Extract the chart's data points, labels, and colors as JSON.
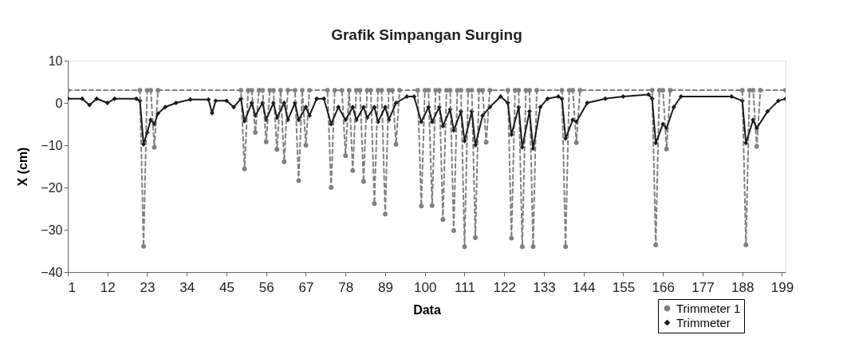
{
  "chart_data": {
    "type": "line",
    "title": "Grafik Simpangan Surging",
    "xlabel": "Data",
    "ylabel": "X (cm)",
    "xlim": [
      1,
      200
    ],
    "xticks": [
      1,
      12,
      23,
      34,
      45,
      56,
      67,
      78,
      89,
      100,
      111,
      122,
      133,
      144,
      155,
      166,
      177,
      188,
      199
    ],
    "ylim": [
      -40,
      10
    ],
    "yticks": [
      -40,
      -30,
      -20,
      -10,
      0,
      10
    ],
    "grid": false,
    "legend": "bottom right",
    "series": [
      {
        "name": "Trimmeter 1",
        "color": "#808080",
        "marker": "circle",
        "line_style": "dashed",
        "x": [
          1,
          21,
          22,
          23,
          24,
          25,
          26,
          49,
          50,
          51,
          52,
          53,
          54,
          55,
          56,
          57,
          58,
          59,
          60,
          61,
          62,
          64,
          65,
          66,
          67,
          68,
          73,
          74,
          75,
          77,
          78,
          79,
          80,
          81,
          82,
          83,
          84,
          85,
          86,
          87,
          88,
          89,
          90,
          91,
          92,
          93,
          98,
          99,
          100,
          101,
          102,
          103,
          104,
          105,
          106,
          107,
          108,
          109,
          110,
          111,
          112,
          113,
          114,
          115,
          116,
          117,
          118,
          123,
          124,
          125,
          126,
          127,
          128,
          129,
          130,
          131,
          138,
          139,
          140,
          141,
          142,
          143,
          163,
          164,
          165,
          166,
          167,
          168,
          188,
          189,
          190,
          191,
          192,
          193,
          200
        ],
        "values": [
          3,
          3,
          -33.9,
          3,
          3,
          -10.5,
          3,
          3,
          -15.6,
          3,
          3,
          -7,
          3,
          3,
          -9.2,
          3,
          3,
          -11,
          3,
          -13.9,
          3,
          3,
          -18.4,
          3,
          -10,
          3,
          3,
          -20,
          3,
          3,
          -12.5,
          3,
          -16,
          3,
          3,
          -18.6,
          3,
          3,
          -23.8,
          3,
          3,
          -26.3,
          3,
          3,
          -9.8,
          3,
          3,
          -24.4,
          3,
          3,
          -24.3,
          3,
          3,
          -27.6,
          3,
          3,
          -30.2,
          3,
          3,
          -34,
          3,
          3,
          -31.9,
          3,
          3,
          -9.3,
          3,
          3,
          -32,
          3,
          3,
          -34,
          3,
          3,
          -34,
          3,
          3,
          -34,
          3,
          3,
          -9.4,
          3,
          3,
          -33.6,
          3,
          3,
          -10.9,
          3,
          3,
          -33.6,
          3,
          3,
          -10.3,
          3,
          3
        ]
      },
      {
        "name": "Trimmeter",
        "color": "#1a1a1a",
        "marker": "diamond",
        "line_style": "solid",
        "x": [
          1,
          5,
          7,
          9,
          12,
          14,
          20,
          21,
          22,
          23,
          24,
          25,
          26,
          28,
          31,
          35,
          40,
          41,
          42,
          45,
          47,
          49,
          50,
          52,
          53,
          55,
          56,
          58,
          59,
          61,
          62,
          64,
          65,
          67,
          68,
          70,
          72,
          74,
          76,
          78,
          80,
          81,
          83,
          84,
          86,
          87,
          89,
          90,
          92,
          95,
          97,
          99,
          101,
          102,
          104,
          105,
          107,
          108,
          110,
          111,
          113,
          114,
          116,
          118,
          121,
          123,
          124,
          126,
          127,
          129,
          130,
          132,
          134,
          137,
          138,
          139,
          141,
          142,
          145,
          150,
          155,
          162,
          163,
          164,
          166,
          167,
          169,
          171,
          185,
          188,
          189,
          191,
          192,
          195,
          198,
          200
        ],
        "values": [
          1,
          1,
          -0.5,
          1,
          0,
          1,
          1,
          0.5,
          -9.8,
          -7,
          -4,
          -5,
          -2.5,
          -1,
          0,
          0.8,
          0.8,
          -2.4,
          0.5,
          0.5,
          -1,
          1,
          -4.3,
          0,
          -3,
          0,
          -4,
          0,
          -3.5,
          0,
          -4,
          0,
          -4,
          -1,
          -3,
          1,
          1,
          -5,
          -1,
          -4,
          -1,
          -4,
          -1,
          -3.5,
          -1,
          -4.5,
          -1,
          -4,
          0,
          1.5,
          1.5,
          -4.5,
          -1,
          -4.5,
          -1,
          -5.5,
          -1.5,
          -6.5,
          -2,
          -9,
          -2,
          -10,
          -3,
          -1,
          1.5,
          0,
          -7.5,
          -1,
          -10.5,
          -2,
          -10.8,
          -1,
          1,
          1.5,
          1,
          -8.4,
          -4,
          -4.5,
          0,
          1,
          1.5,
          2,
          1,
          -9.5,
          -5,
          -6,
          -1,
          1.5,
          1.5,
          0.5,
          -9.5,
          -4,
          -6,
          -2,
          0.5,
          1
        ]
      }
    ]
  }
}
